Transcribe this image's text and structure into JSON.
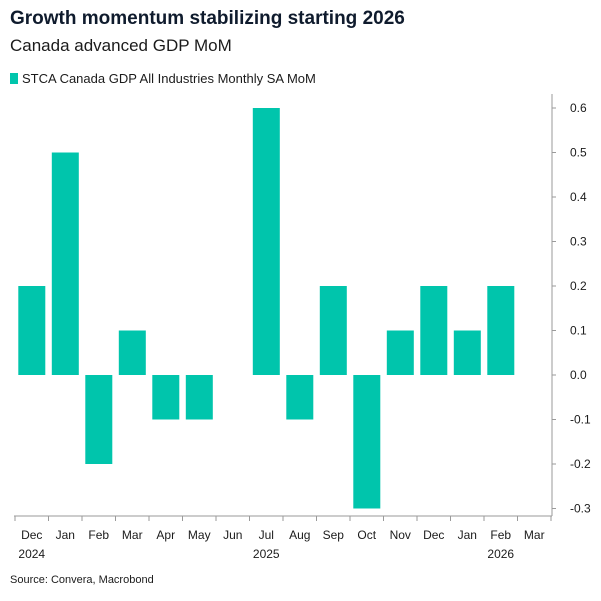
{
  "title": "Growth momentum stabilizing starting 2026",
  "subtitle": "Canada advanced GDP MoM",
  "source": "Source: Convera, Macrobond",
  "chart_data": {
    "type": "bar",
    "categories": [
      "Dec",
      "Jan",
      "Feb",
      "Mar",
      "Apr",
      "May",
      "Jun",
      "Jul",
      "Aug",
      "Sep",
      "Oct",
      "Nov",
      "Dec",
      "Jan",
      "Feb",
      "Mar"
    ],
    "year_labels": [
      {
        "label": "2024",
        "category_index": 0
      },
      {
        "label": "2025",
        "category_index": 7
      },
      {
        "label": "2026",
        "category_index": 14
      }
    ],
    "series": [
      {
        "name": "STCA Canada GDP All Industries Monthly SA MoM",
        "color": "#00c5ac",
        "values": [
          0.2,
          0.5,
          -0.2,
          0.1,
          -0.1,
          -0.1,
          null,
          0.6,
          -0.1,
          0.2,
          -0.3,
          0.1,
          0.2,
          0.1,
          0.2,
          null
        ]
      }
    ],
    "y_ticks": [
      "0.6",
      "0.5",
      "0.4",
      "0.3",
      "0.2",
      "0.1",
      "0.0",
      "-0.1",
      "-0.2",
      "-0.3"
    ],
    "highlight_tick": "0.2",
    "highlight_color": "#00b39c",
    "ylim": [
      -0.32,
      0.62
    ],
    "y_axis_position": "right",
    "grid": false,
    "legend_position": "top-left"
  }
}
